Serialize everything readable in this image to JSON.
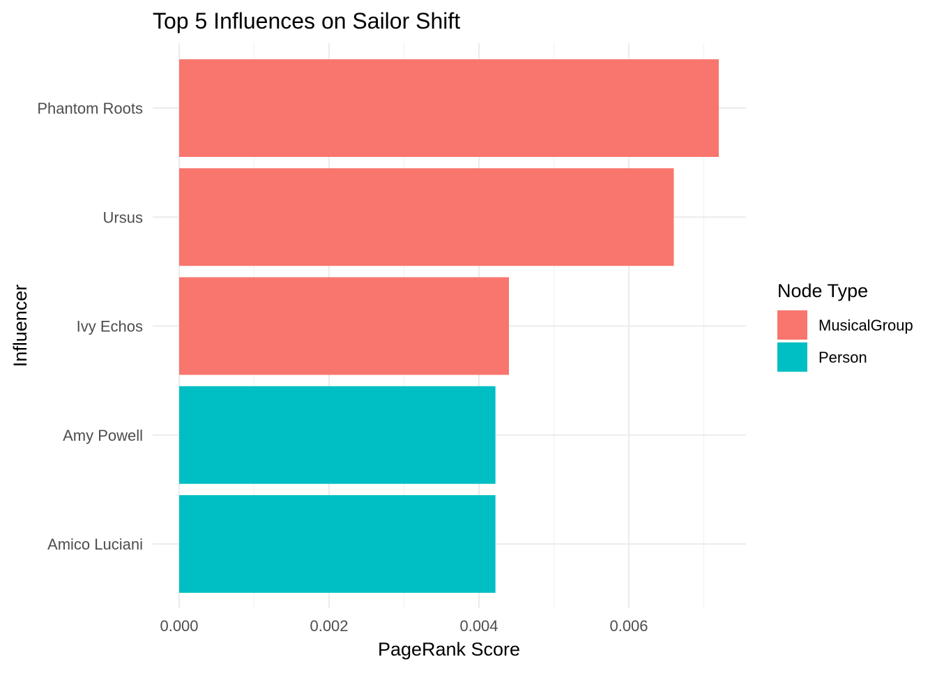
{
  "chart_data": {
    "type": "bar",
    "orientation": "horizontal",
    "title": "Top 5 Influences on Sailor Shift",
    "xlabel": "PageRank Score",
    "ylabel": "Influencer",
    "categories": [
      "Phantom Roots",
      "Ursus",
      "Ivy Echos",
      "Amy Powell",
      "Amico Luciani"
    ],
    "values": [
      0.0072,
      0.0066,
      0.0044,
      0.00422,
      0.00422
    ],
    "groups": [
      "MusicalGroup",
      "MusicalGroup",
      "MusicalGroup",
      "Person",
      "Person"
    ],
    "xlim": [
      0,
      0.0076
    ],
    "xticks": [
      0,
      0.002,
      0.004,
      0.006
    ],
    "xtick_labels": [
      "0.000",
      "0.002",
      "0.004",
      "0.006"
    ],
    "grid": true,
    "legend": {
      "title": "Node Type",
      "position": "right",
      "entries": [
        {
          "label": "MusicalGroup",
          "color": "#F8766D"
        },
        {
          "label": "Person",
          "color": "#00BFC4"
        }
      ]
    }
  }
}
